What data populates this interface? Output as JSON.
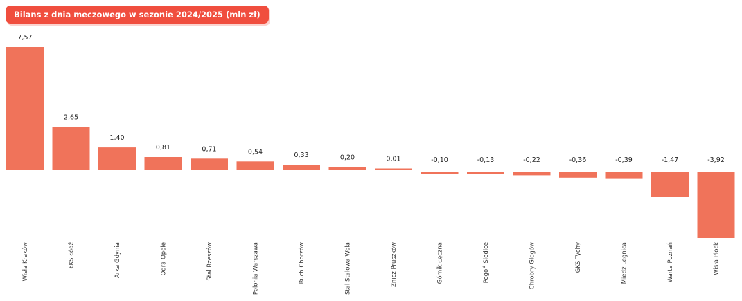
{
  "header": {
    "title": "Bilans z dnia meczowego w sezonie 2024/2025 (mln zł)"
  },
  "colors": {
    "bar": "#f0735a",
    "title_bg": "#f04e3e"
  },
  "chart_data": {
    "type": "bar",
    "title": "Bilans z dnia meczowego w sezonie 2024/2025 (mln zł)",
    "categories": [
      "Wisła Kraków",
      "ŁKS Łódź",
      "Arka Gdynia",
      "Odra Opole",
      "Stal Rzeszów",
      "Polonia Warszawa",
      "Ruch Chorzów",
      "Stal Stalowa Wola",
      "Znicz Pruszków",
      "Górnik Łęczna",
      "Pogoń Siedlce",
      "Chrobry Głogów",
      "GKS Tychy",
      "Miedź Legnica",
      "Warta Poznań",
      "Wisła Płock"
    ],
    "values": [
      7.57,
      2.65,
      1.4,
      0.81,
      0.71,
      0.54,
      0.33,
      0.2,
      0.01,
      -0.1,
      -0.13,
      -0.22,
      -0.36,
      -0.39,
      -1.47,
      -3.92
    ],
    "value_labels": [
      "7,57",
      "2,65",
      "1,40",
      "0,81",
      "0,71",
      "0,54",
      "0,33",
      "0,20",
      "0,01",
      "-0,10",
      "-0,13",
      "-0,22",
      "-0,36",
      "-0,39",
      "-1,47",
      "-3,92"
    ],
    "xlabel": "",
    "ylabel": "",
    "grid": false,
    "legend": "none"
  }
}
